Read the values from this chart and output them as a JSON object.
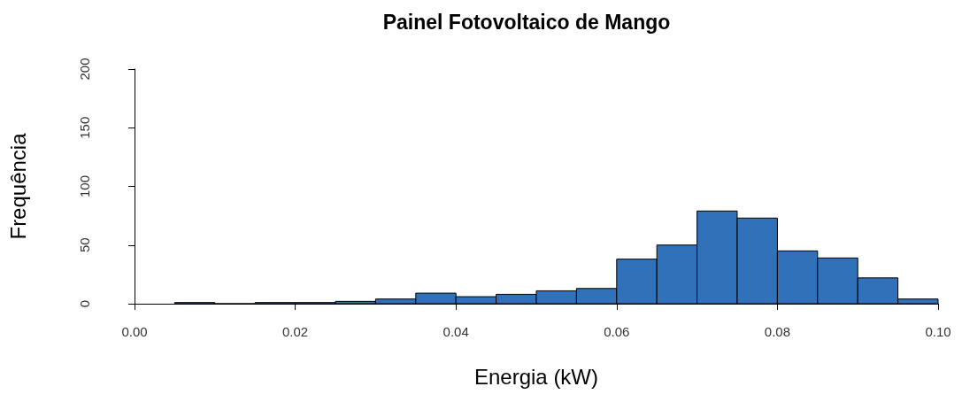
{
  "chart_data": {
    "type": "histogram",
    "title": "Painel Fotovoltaico de Mango",
    "xlabel": "Energia (kW)",
    "ylabel": "Frequência",
    "color": "#3171b9",
    "bins": [
      0.005,
      0.01,
      0.015,
      0.02,
      0.025,
      0.03,
      0.035,
      0.04,
      0.045,
      0.05,
      0.055,
      0.06,
      0.065,
      0.07,
      0.075,
      0.08,
      0.085,
      0.09,
      0.095,
      0.1
    ],
    "values": [
      1,
      0,
      1,
      1,
      2,
      4,
      9,
      6,
      8,
      11,
      13,
      38,
      50,
      79,
      73,
      45,
      39,
      22,
      4
    ],
    "xlim": [
      0,
      0.1
    ],
    "xticks": [
      {
        "value": 0,
        "label": "0.00"
      },
      {
        "value": 0.02,
        "label": "0.02"
      },
      {
        "value": 0.04,
        "label": "0.04"
      },
      {
        "value": 0.06,
        "label": "0.06"
      },
      {
        "value": 0.08,
        "label": "0.08"
      },
      {
        "value": 0.1,
        "label": "0.10"
      }
    ],
    "ylim": [
      0,
      200
    ],
    "yticks": [
      0,
      50,
      100,
      150,
      200
    ],
    "grid": false
  }
}
